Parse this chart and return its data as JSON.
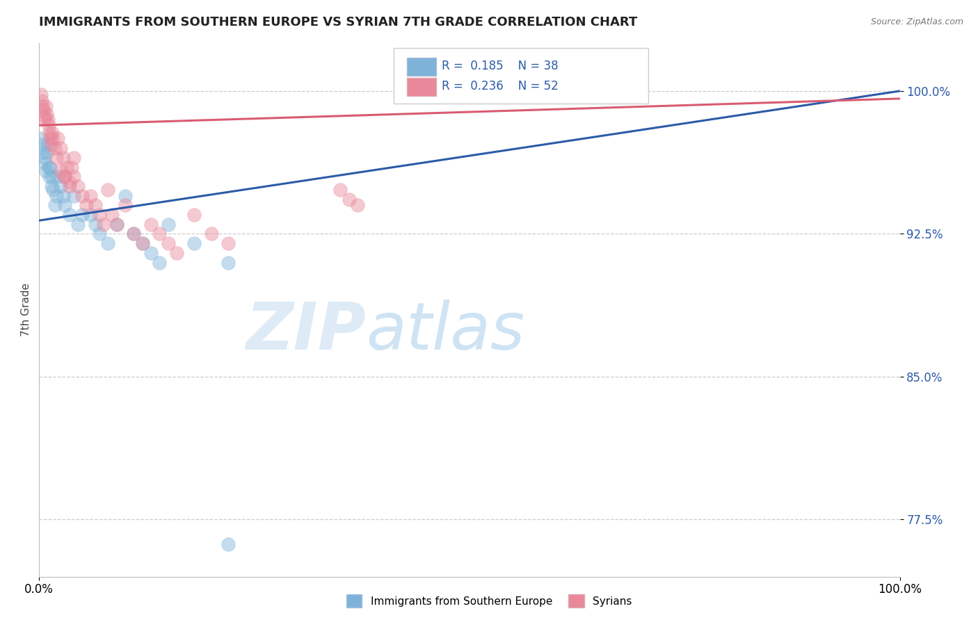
{
  "title": "IMMIGRANTS FROM SOUTHERN EUROPE VS SYRIAN 7TH GRADE CORRELATION CHART",
  "source_text": "Source: ZipAtlas.com",
  "ylabel": "7th Grade",
  "xlim": [
    0.0,
    1.0
  ],
  "ylim": [
    0.745,
    1.025
  ],
  "yticks": [
    0.775,
    0.85,
    0.925,
    1.0
  ],
  "ytick_labels": [
    "77.5%",
    "85.0%",
    "92.5%",
    "100.0%"
  ],
  "xticks": [
    0.0,
    1.0
  ],
  "xtick_labels": [
    "0.0%",
    "100.0%"
  ],
  "blue_color": "#7EB3D8",
  "pink_color": "#E8889A",
  "blue_line_color": "#2B5BA8",
  "pink_line_color": "#D95B72",
  "legend_R1": "0.185",
  "legend_N1": "38",
  "legend_R2": "0.236",
  "legend_N2": "52",
  "legend_label1": "Immigrants from Southern Europe",
  "legend_label2": "Syrians",
  "blue_line_x0": 0.0,
  "blue_line_y0": 0.932,
  "blue_line_x1": 1.0,
  "blue_line_y1": 1.0,
  "pink_line_x0": 0.0,
  "pink_line_y0": 0.982,
  "pink_line_x1": 1.0,
  "pink_line_y1": 0.996,
  "blue_scatter_x": [
    0.003,
    0.004,
    0.005,
    0.006,
    0.007,
    0.008,
    0.009,
    0.01,
    0.011,
    0.012,
    0.013,
    0.014,
    0.015,
    0.016,
    0.018,
    0.02,
    0.022,
    0.025,
    0.028,
    0.03,
    0.035,
    0.04,
    0.045,
    0.05,
    0.06,
    0.065,
    0.07,
    0.08,
    0.09,
    0.1,
    0.11,
    0.12,
    0.13,
    0.14,
    0.15,
    0.18,
    0.22,
    0.22
  ],
  "blue_scatter_y": [
    0.975,
    0.972,
    0.968,
    0.965,
    0.962,
    0.958,
    0.968,
    0.972,
    0.96,
    0.955,
    0.96,
    0.95,
    0.955,
    0.948,
    0.94,
    0.945,
    0.955,
    0.95,
    0.945,
    0.94,
    0.935,
    0.945,
    0.93,
    0.935,
    0.935,
    0.93,
    0.925,
    0.92,
    0.93,
    0.945,
    0.925,
    0.92,
    0.915,
    0.91,
    0.93,
    0.92,
    0.91,
    0.762
  ],
  "pink_scatter_x": [
    0.002,
    0.003,
    0.004,
    0.005,
    0.006,
    0.007,
    0.008,
    0.009,
    0.01,
    0.011,
    0.012,
    0.013,
    0.014,
    0.015,
    0.016,
    0.018,
    0.02,
    0.022,
    0.025,
    0.028,
    0.03,
    0.032,
    0.035,
    0.038,
    0.04,
    0.045,
    0.05,
    0.055,
    0.06,
    0.065,
    0.07,
    0.075,
    0.08,
    0.085,
    0.09,
    0.1,
    0.11,
    0.12,
    0.13,
    0.14,
    0.15,
    0.16,
    0.18,
    0.2,
    0.22,
    0.025,
    0.03,
    0.035,
    0.04,
    0.35,
    0.36,
    0.37
  ],
  "pink_scatter_y": [
    0.998,
    0.995,
    0.992,
    0.99,
    0.987,
    0.985,
    0.992,
    0.988,
    0.985,
    0.982,
    0.978,
    0.975,
    0.972,
    0.978,
    0.975,
    0.97,
    0.965,
    0.975,
    0.97,
    0.965,
    0.955,
    0.96,
    0.95,
    0.96,
    0.955,
    0.95,
    0.945,
    0.94,
    0.945,
    0.94,
    0.935,
    0.93,
    0.948,
    0.935,
    0.93,
    0.94,
    0.925,
    0.92,
    0.93,
    0.925,
    0.92,
    0.915,
    0.935,
    0.925,
    0.92,
    0.958,
    0.955,
    0.952,
    0.965,
    0.948,
    0.943,
    0.94
  ]
}
